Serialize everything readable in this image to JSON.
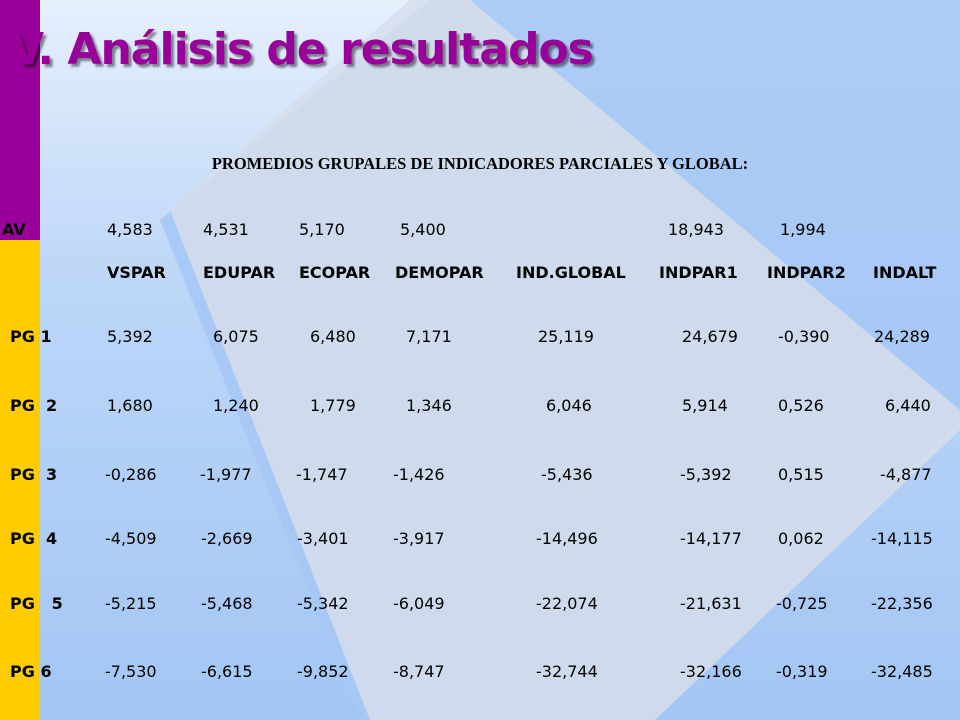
{
  "title": "V. Análisis de resultados",
  "subtitle": "PROMEDIOS GRUPALES DE INDICADORES PARCIALES Y GLOBAL:",
  "av_row": {
    "label": "AV",
    "values": [
      "4,583",
      "4,531",
      "5,170",
      "5,400",
      "",
      "18,943",
      "1,994",
      ""
    ]
  },
  "headers": [
    "VSPAR",
    "EDUPAR",
    "ECOPAR",
    "DEMOPAR",
    "IND.GLOBAL",
    "INDPAR1",
    "INDPAR2",
    "INDALT"
  ],
  "rows": [
    {
      "label_pre": "PG ",
      "label_num": "1",
      "values": [
        "5,392",
        "6,075",
        "6,480",
        "7,171",
        "25,119",
        "24,679",
        "-0,390",
        "24,289"
      ]
    },
    {
      "label_pre": "PG ",
      "label_num": "2",
      "values": [
        "1,680",
        "1,240",
        "1,779",
        "1,346",
        "6,046",
        "5,914",
        "0,526",
        "6,440"
      ]
    },
    {
      "label_pre": "PG ",
      "label_num": "3",
      "values": [
        "-0,286",
        "-1,977",
        "-1,747",
        "-1,426",
        "-5,436",
        "-5,392",
        "0,515",
        "-4,877"
      ]
    },
    {
      "label_pre": "PG ",
      "label_num": "4",
      "values": [
        "-4,509",
        "-2,669",
        "-3,401",
        "-3,917",
        "-14,496",
        "-14,177",
        "0,062",
        "-14,115"
      ]
    },
    {
      "label_pre": "PG ",
      "label_num": "5",
      "values": [
        "-5,215",
        "-5,468",
        "-5,342",
        "-6,049",
        "-22,074",
        "-21,631",
        "-0,725",
        "-22,356"
      ]
    },
    {
      "label_pre": "PG ",
      "label_num": "6",
      "values": [
        "-7,530",
        "-6,615",
        "-9,852",
        "-8,747",
        "-32,744",
        "-32,166",
        "-0,319",
        "-32,485"
      ]
    }
  ]
}
